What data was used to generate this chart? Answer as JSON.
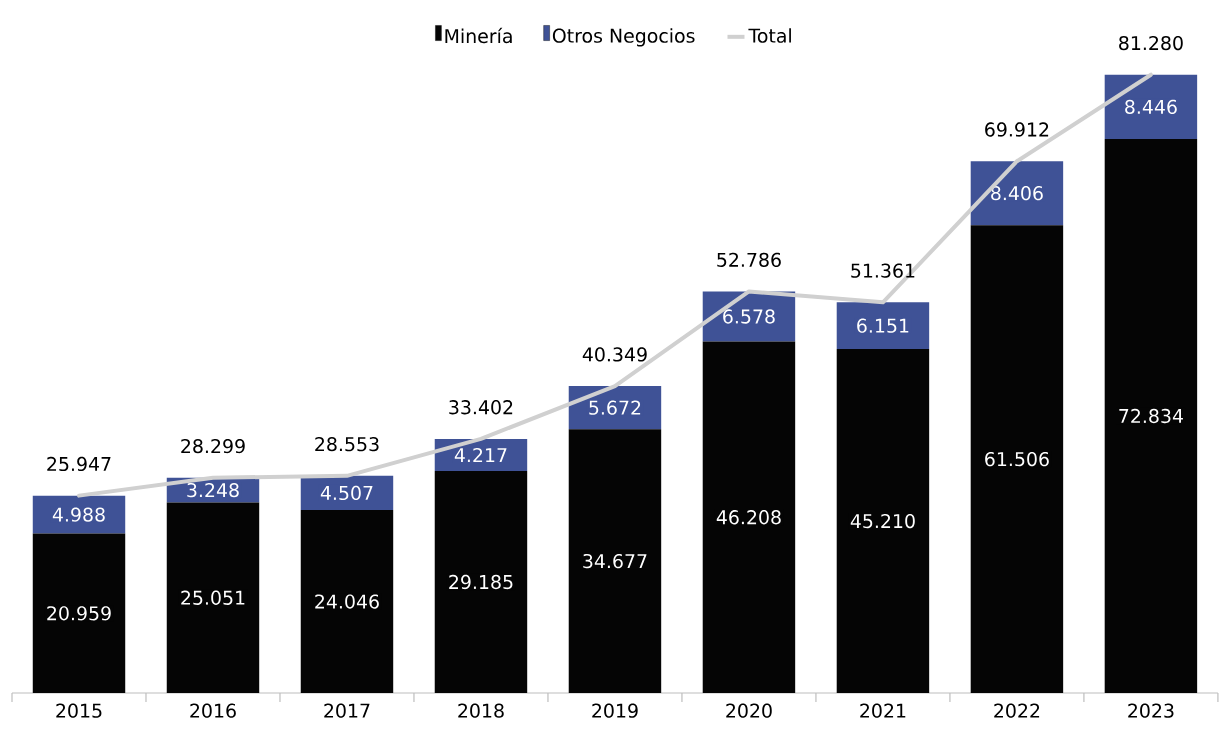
{
  "chart_data": {
    "type": "bar",
    "stacked": true,
    "legend": "top",
    "categories": [
      "2015",
      "2016",
      "2017",
      "2018",
      "2019",
      "2020",
      "2021",
      "2022",
      "2023"
    ],
    "series": [
      {
        "name": "Minería",
        "color": "#050505",
        "values": [
          20959,
          25051,
          24046,
          29185,
          34677,
          46208,
          45210,
          61506,
          72834
        ],
        "value_labels": [
          "20.959",
          "25.051",
          "24.046",
          "29.185",
          "34.677",
          "46.208",
          "45.210",
          "61.506",
          "72.834"
        ]
      },
      {
        "name": "Otros Negocios",
        "color": "#3f5296",
        "values": [
          4988,
          3248,
          4507,
          4217,
          5672,
          6578,
          6151,
          8406,
          8446
        ],
        "value_labels": [
          "4.988",
          "3.248",
          "4.507",
          "4.217",
          "5.672",
          "6.578",
          "6.151",
          "8.406",
          "8.446"
        ]
      },
      {
        "name": "Total",
        "type": "line",
        "color": "#d0d0d0",
        "values": [
          25947,
          28299,
          28553,
          33402,
          40349,
          52786,
          51361,
          69912,
          81280
        ],
        "value_labels": [
          "25.947",
          "28.299",
          "28.553",
          "33.402",
          "40.349",
          "52.786",
          "51.361",
          "69.912",
          "81.280"
        ]
      }
    ]
  }
}
